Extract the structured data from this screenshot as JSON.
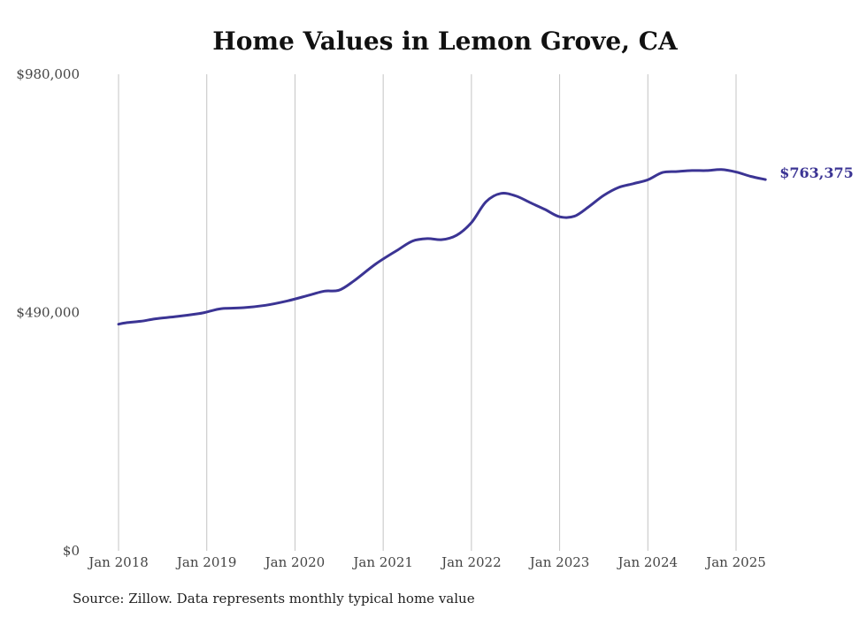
{
  "chart_data": {
    "type": "line",
    "title": "Home Values in Lemon Grove, CA",
    "source": "Source: Zillow. Data represents monthly typical home value",
    "ylim": [
      0,
      980000
    ],
    "y_ticks": [
      {
        "value": 0,
        "label": "$0"
      },
      {
        "value": 490000,
        "label": "$490,000"
      },
      {
        "value": 980000,
        "label": "$980,000"
      }
    ],
    "x_ticks": [
      {
        "value": "2018-01",
        "label": "Jan 2018"
      },
      {
        "value": "2019-01",
        "label": "Jan 2019"
      },
      {
        "value": "2020-01",
        "label": "Jan 2020"
      },
      {
        "value": "2021-01",
        "label": "Jan 2021"
      },
      {
        "value": "2022-01",
        "label": "Jan 2022"
      },
      {
        "value": "2023-01",
        "label": "Jan 2023"
      },
      {
        "value": "2024-01",
        "label": "Jan 2024"
      },
      {
        "value": "2025-01",
        "label": "Jan 2025"
      }
    ],
    "grid": "vertical",
    "line_color": "#3b3494",
    "end_label": "$763,375",
    "series": [
      {
        "points": [
          [
            "2018-01",
            466000
          ],
          [
            "2018-02",
            469000
          ],
          [
            "2018-04",
            472000
          ],
          [
            "2018-06",
            477000
          ],
          [
            "2018-09",
            482000
          ],
          [
            "2018-12",
            488000
          ],
          [
            "2019-01",
            491000
          ],
          [
            "2019-03",
            498000
          ],
          [
            "2019-06",
            500000
          ],
          [
            "2019-09",
            505000
          ],
          [
            "2019-12",
            514000
          ],
          [
            "2020-03",
            526000
          ],
          [
            "2020-05",
            534000
          ],
          [
            "2020-07",
            536000
          ],
          [
            "2020-09",
            555000
          ],
          [
            "2020-12",
            590000
          ],
          [
            "2021-03",
            619000
          ],
          [
            "2021-05",
            637000
          ],
          [
            "2021-07",
            642000
          ],
          [
            "2021-09",
            640000
          ],
          [
            "2021-11",
            649000
          ],
          [
            "2022-01",
            675000
          ],
          [
            "2022-03",
            718000
          ],
          [
            "2022-05",
            735000
          ],
          [
            "2022-07",
            730000
          ],
          [
            "2022-09",
            716000
          ],
          [
            "2022-11",
            702000
          ],
          [
            "2023-01",
            687000
          ],
          [
            "2023-03",
            688000
          ],
          [
            "2023-05",
            708000
          ],
          [
            "2023-07",
            731000
          ],
          [
            "2023-09",
            747000
          ],
          [
            "2023-11",
            755000
          ],
          [
            "2024-01",
            763000
          ],
          [
            "2024-03",
            778000
          ],
          [
            "2024-05",
            780000
          ],
          [
            "2024-07",
            782000
          ],
          [
            "2024-09",
            782000
          ],
          [
            "2024-11",
            784000
          ],
          [
            "2025-01",
            779000
          ],
          [
            "2025-03",
            770000
          ],
          [
            "2025-05",
            763375
          ]
        ]
      }
    ]
  }
}
